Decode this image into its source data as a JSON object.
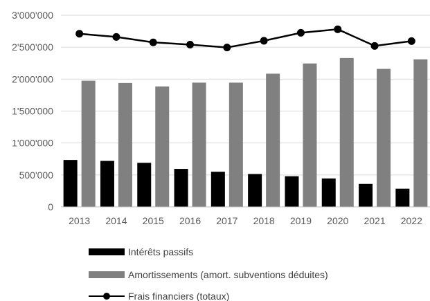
{
  "chart_data": {
    "type": "bar",
    "categories": [
      "2013",
      "2014",
      "2015",
      "2016",
      "2017",
      "2018",
      "2019",
      "2020",
      "2021",
      "2022"
    ],
    "series": [
      {
        "name": "Intérêts passifs",
        "kind": "bar",
        "color": "#000000",
        "values": [
          735000,
          720000,
          690000,
          595000,
          550000,
          515000,
          480000,
          445000,
          360000,
          285000
        ]
      },
      {
        "name": "Amortissements (amort. subventions déduites)",
        "kind": "bar",
        "color": "#808080",
        "values": [
          1975000,
          1940000,
          1885000,
          1945000,
          1945000,
          2085000,
          2245000,
          2330000,
          2160000,
          2310000
        ]
      },
      {
        "name": "Frais financiers (totaux)",
        "kind": "line",
        "color": "#000000",
        "values": [
          2710000,
          2660000,
          2575000,
          2540000,
          2495000,
          2600000,
          2725000,
          2780000,
          2520000,
          2595000
        ]
      }
    ],
    "ylim": [
      0,
      3000000
    ],
    "yticks": [
      0,
      500000,
      1000000,
      1500000,
      2000000,
      2500000,
      3000000
    ],
    "ytick_labels": [
      "0",
      "500'000",
      "1'000'000",
      "1'500'000",
      "2'000'000",
      "2'500'000",
      "3'000'000"
    ],
    "grid": true,
    "legend_position": "bottom"
  }
}
